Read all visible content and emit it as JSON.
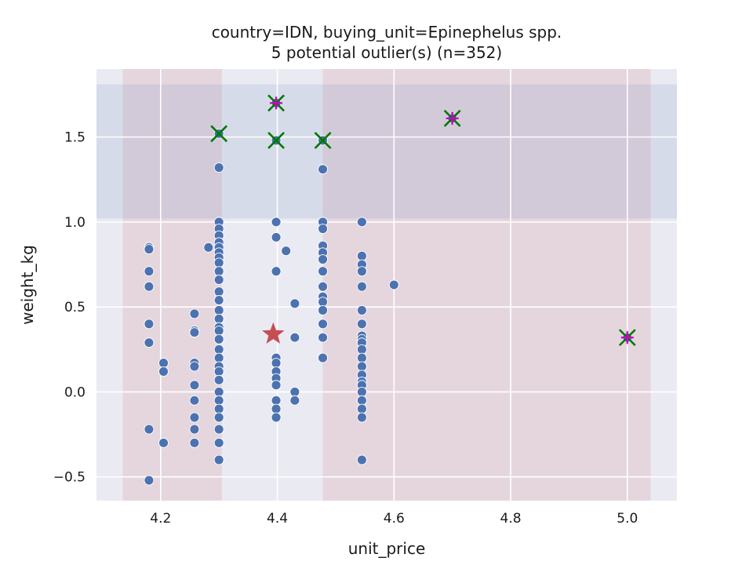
{
  "chart_data": {
    "type": "scatter",
    "title": "country=IDN, buying_unit=Epinephelus spp.",
    "subtitle": "5 potential outlier(s) (n=352)",
    "xlabel": "unit_price",
    "ylabel": "weight_kg",
    "xlim": [
      4.09,
      5.085
    ],
    "ylim": [
      -0.64,
      1.9
    ],
    "xticks": [
      4.2,
      4.4,
      4.6,
      4.8,
      5.0
    ],
    "xtick_labels": [
      "4.2",
      "4.4",
      "4.6",
      "4.8",
      "5.0"
    ],
    "yticks": [
      -0.5,
      0.0,
      0.5,
      1.0,
      1.5
    ],
    "ytick_labels": [
      "−0.5",
      "0.0",
      "0.5",
      "1.0",
      "1.5"
    ],
    "grid": true,
    "colors": {
      "plot_bg": "#eaeaf2",
      "grid": "#ffffff",
      "points": "#4c72b0",
      "point_edge": "#ffffff",
      "x_band": "#c44e52",
      "y_band": "#4c72b0",
      "median_star": "#c44e52",
      "outlier_x": "#007a00",
      "outlier_plus": "#cc00cc"
    },
    "x_bands": [
      [
        4.135,
        4.305
      ],
      [
        4.478,
        5.04
      ]
    ],
    "y_band": [
      1.02,
      1.81
    ],
    "points": [
      [
        4.18,
        0.85
      ],
      [
        4.18,
        0.84
      ],
      [
        4.18,
        0.71
      ],
      [
        4.18,
        0.62
      ],
      [
        4.18,
        0.4
      ],
      [
        4.18,
        0.29
      ],
      [
        4.18,
        -0.22
      ],
      [
        4.18,
        -0.52
      ],
      [
        4.205,
        0.17
      ],
      [
        4.205,
        0.12
      ],
      [
        4.205,
        -0.3
      ],
      [
        4.258,
        0.46
      ],
      [
        4.258,
        0.36
      ],
      [
        4.258,
        0.35
      ],
      [
        4.258,
        0.17
      ],
      [
        4.258,
        0.15
      ],
      [
        4.258,
        0.04
      ],
      [
        4.258,
        -0.05
      ],
      [
        4.258,
        -0.15
      ],
      [
        4.258,
        -0.22
      ],
      [
        4.258,
        -0.3
      ],
      [
        4.282,
        0.85
      ],
      [
        4.3,
        1.52
      ],
      [
        4.3,
        1.32
      ],
      [
        4.3,
        1.0
      ],
      [
        4.3,
        0.96
      ],
      [
        4.3,
        0.92
      ],
      [
        4.3,
        0.88
      ],
      [
        4.3,
        0.85
      ],
      [
        4.3,
        0.82
      ],
      [
        4.3,
        0.79
      ],
      [
        4.3,
        0.76
      ],
      [
        4.3,
        0.71
      ],
      [
        4.3,
        0.66
      ],
      [
        4.3,
        0.59
      ],
      [
        4.3,
        0.54
      ],
      [
        4.3,
        0.48
      ],
      [
        4.3,
        0.43
      ],
      [
        4.3,
        0.38
      ],
      [
        4.3,
        0.36
      ],
      [
        4.3,
        0.31
      ],
      [
        4.3,
        0.25
      ],
      [
        4.3,
        0.2
      ],
      [
        4.3,
        0.15
      ],
      [
        4.3,
        0.12
      ],
      [
        4.3,
        0.07
      ],
      [
        4.3,
        0.0
      ],
      [
        4.3,
        -0.05
      ],
      [
        4.3,
        -0.1
      ],
      [
        4.3,
        -0.15
      ],
      [
        4.3,
        -0.22
      ],
      [
        4.3,
        -0.3
      ],
      [
        4.3,
        -0.4
      ],
      [
        4.398,
        1.7
      ],
      [
        4.398,
        1.48
      ],
      [
        4.398,
        1.0
      ],
      [
        4.398,
        0.91
      ],
      [
        4.398,
        0.71
      ],
      [
        4.398,
        0.2
      ],
      [
        4.398,
        0.17
      ],
      [
        4.398,
        0.12
      ],
      [
        4.398,
        0.08
      ],
      [
        4.398,
        0.04
      ],
      [
        4.398,
        -0.05
      ],
      [
        4.398,
        -0.1
      ],
      [
        4.398,
        -0.15
      ],
      [
        4.415,
        0.83
      ],
      [
        4.43,
        0.52
      ],
      [
        4.43,
        0.32
      ],
      [
        4.43,
        0.0
      ],
      [
        4.43,
        -0.05
      ],
      [
        4.478,
        1.48
      ],
      [
        4.478,
        1.31
      ],
      [
        4.478,
        1.0
      ],
      [
        4.478,
        0.96
      ],
      [
        4.478,
        0.86
      ],
      [
        4.478,
        0.82
      ],
      [
        4.478,
        0.78
      ],
      [
        4.478,
        0.71
      ],
      [
        4.478,
        0.62
      ],
      [
        4.478,
        0.56
      ],
      [
        4.478,
        0.53
      ],
      [
        4.478,
        0.48
      ],
      [
        4.478,
        0.4
      ],
      [
        4.478,
        0.32
      ],
      [
        4.478,
        0.2
      ],
      [
        4.545,
        1.0
      ],
      [
        4.545,
        0.8
      ],
      [
        4.545,
        0.75
      ],
      [
        4.545,
        0.71
      ],
      [
        4.545,
        0.62
      ],
      [
        4.545,
        0.48
      ],
      [
        4.545,
        0.4
      ],
      [
        4.545,
        0.33
      ],
      [
        4.545,
        0.31
      ],
      [
        4.545,
        0.29
      ],
      [
        4.545,
        0.25
      ],
      [
        4.545,
        0.2
      ],
      [
        4.545,
        0.15
      ],
      [
        4.545,
        0.1
      ],
      [
        4.545,
        0.06
      ],
      [
        4.545,
        0.04
      ],
      [
        4.545,
        0.0
      ],
      [
        4.545,
        -0.05
      ],
      [
        4.545,
        -0.1
      ],
      [
        4.545,
        -0.15
      ],
      [
        4.545,
        -0.4
      ],
      [
        4.6,
        0.63
      ],
      [
        4.7,
        1.61
      ],
      [
        5.0,
        0.32
      ]
    ],
    "outliers_x": [
      [
        4.3,
        1.52
      ],
      [
        4.398,
        1.7
      ],
      [
        4.398,
        1.48
      ],
      [
        4.478,
        1.48
      ],
      [
        4.7,
        1.61
      ],
      [
        5.0,
        0.32
      ]
    ],
    "outliers_plus": [
      [
        4.398,
        1.7
      ],
      [
        4.7,
        1.61
      ],
      [
        5.0,
        0.32
      ]
    ],
    "median_star": [
      4.393,
      0.34
    ]
  }
}
